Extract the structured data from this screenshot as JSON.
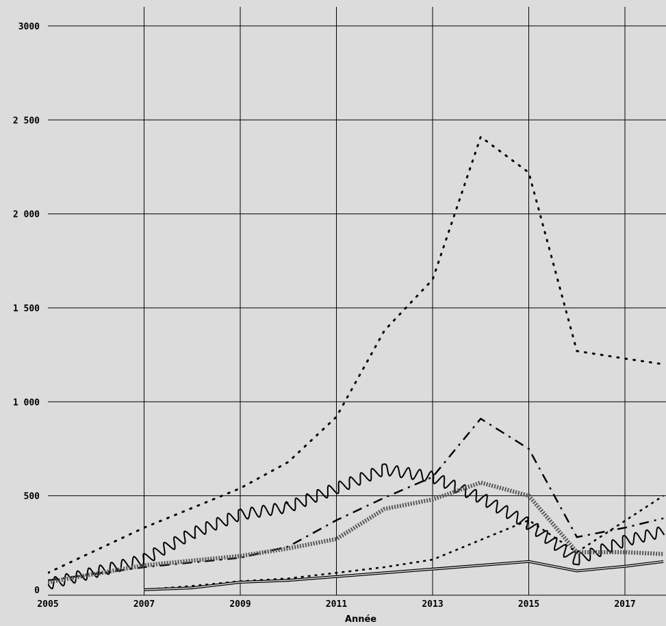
{
  "chart_data": {
    "type": "line",
    "xlabel": "Année",
    "ylabel": "",
    "xlim": [
      2005,
      2017.8
    ],
    "ylim": [
      0,
      3000
    ],
    "grid": true,
    "legend": "none",
    "x_ticks": [
      "2005",
      "2007",
      "2009",
      "2011",
      "2013",
      "2015",
      "2017"
    ],
    "y_ticks": [
      "0",
      "500",
      "1 000",
      "1 500",
      "2 000",
      "2 500",
      "3000"
    ],
    "series": [
      {
        "style": "dotted",
        "color": "#000000",
        "x": [
          2005,
          2007,
          2009,
          2010,
          2011,
          2012,
          2013,
          2014,
          2015,
          2016,
          2017,
          2017.8
        ],
        "y": [
          90,
          330,
          540,
          680,
          920,
          1380,
          1650,
          2410,
          2220,
          1270,
          1230,
          1200
        ]
      },
      {
        "style": "dashdot",
        "color": "#000000",
        "x": [
          2005,
          2007,
          2009,
          2010,
          2011,
          2012,
          2013,
          2014,
          2015,
          2016,
          2017,
          2017.8
        ],
        "y": [
          50,
          120,
          170,
          230,
          370,
          490,
          600,
          910,
          750,
          280,
          330,
          380
        ]
      },
      {
        "style": "wavy",
        "color": "#000000",
        "x": [
          2005,
          2007,
          2008,
          2009,
          2010,
          2011,
          2012,
          2013,
          2014,
          2015,
          2016,
          2017,
          2017.8
        ],
        "y": [
          30,
          160,
          300,
          400,
          440,
          540,
          640,
          600,
          490,
          350,
          160,
          260,
          310
        ]
      },
      {
        "style": "hatched",
        "color": "#555555",
        "x": [
          2005,
          2007,
          2009,
          2010,
          2011,
          2012,
          2013,
          2014,
          2015,
          2016,
          2017,
          2017.8
        ],
        "y": [
          40,
          130,
          180,
          220,
          270,
          430,
          480,
          570,
          500,
          200,
          200,
          190
        ]
      },
      {
        "style": "short-dash",
        "color": "#000000",
        "x": [
          2007,
          2008,
          2009,
          2010,
          2011,
          2012,
          2013,
          2015,
          2016,
          2017.8
        ],
        "y": [
          0,
          20,
          45,
          60,
          90,
          120,
          160,
          370,
          200,
          500
        ]
      },
      {
        "style": "double",
        "color": "#000000",
        "x": [
          2007,
          2008,
          2009,
          2010,
          2011,
          2012,
          2013,
          2014,
          2015,
          2016,
          2017,
          2017.8
        ],
        "y": [
          0,
          10,
          40,
          50,
          70,
          90,
          110,
          130,
          150,
          100,
          125,
          150
        ]
      }
    ]
  }
}
